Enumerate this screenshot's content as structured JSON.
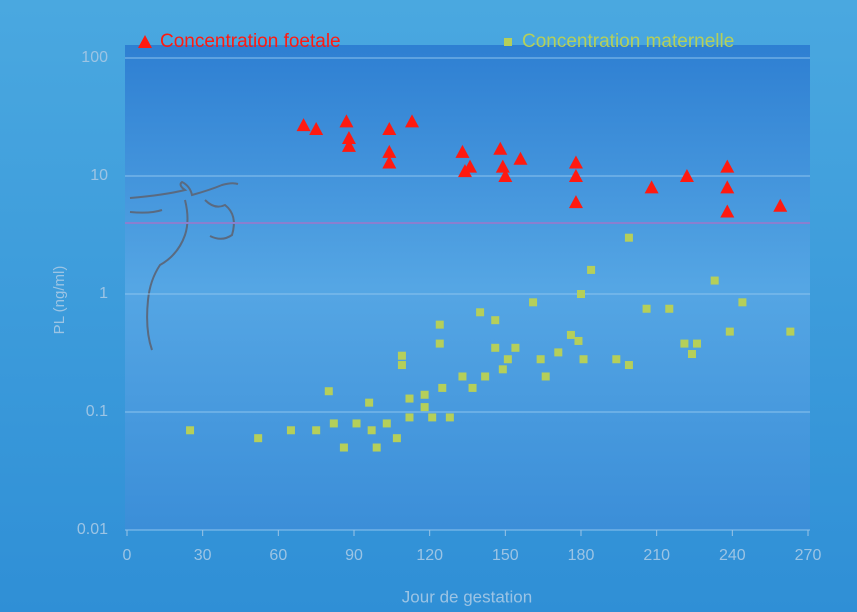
{
  "chart_data": {
    "type": "scatter",
    "xlabel": "Jour de gestation",
    "ylabel": "PL (ng/ml)",
    "log_y": true,
    "grid": true,
    "xlim": [
      0,
      270
    ],
    "xticks": [
      0,
      30,
      60,
      90,
      120,
      150,
      180,
      210,
      240,
      270
    ],
    "ylim": [
      0.01,
      100
    ],
    "yticks": [
      0.01,
      0.1,
      1,
      10,
      100
    ],
    "hline": 4,
    "series": [
      {
        "name": "Concentration foetale",
        "color": "#ff1a10",
        "marker": "triangle",
        "x": [
          70,
          75,
          87,
          88,
          88,
          104,
          104,
          104,
          113,
          133,
          134,
          136,
          148,
          149,
          150,
          156,
          178,
          178,
          178,
          208,
          222,
          238,
          238,
          238,
          259
        ],
        "values": [
          27,
          25,
          29,
          21,
          18,
          25,
          16,
          13,
          29,
          16,
          11,
          12,
          17,
          12,
          10,
          14,
          13,
          10,
          6,
          8,
          10,
          12,
          8,
          5,
          5.6
        ]
      },
      {
        "name": "Concentration maternelle",
        "color": "#b5cf5a",
        "marker": "square",
        "x": [
          25,
          52,
          65,
          75,
          80,
          82,
          86,
          91,
          96,
          97,
          99,
          103,
          107,
          109,
          109,
          112,
          112,
          118,
          118,
          121,
          124,
          124,
          125,
          128,
          133,
          137,
          140,
          142,
          146,
          146,
          149,
          151,
          154,
          161,
          164,
          166,
          171,
          176,
          179,
          180,
          181,
          184,
          194,
          199,
          199,
          206,
          215,
          221,
          224,
          226,
          233,
          239,
          244,
          263
        ],
        "values": [
          0.07,
          0.06,
          0.07,
          0.07,
          0.15,
          0.08,
          0.05,
          0.08,
          0.12,
          0.07,
          0.05,
          0.08,
          0.06,
          0.3,
          0.25,
          0.13,
          0.09,
          0.14,
          0.11,
          0.09,
          0.55,
          0.38,
          0.16,
          0.09,
          0.2,
          0.16,
          0.7,
          0.2,
          0.6,
          0.35,
          0.23,
          0.28,
          0.35,
          0.85,
          0.28,
          0.2,
          0.32,
          0.45,
          0.4,
          1,
          0.28,
          1.6,
          0.28,
          3,
          0.25,
          0.75,
          0.75,
          0.38,
          0.31,
          0.38,
          1.3,
          0.48,
          0.85,
          0.48
        ]
      }
    ]
  }
}
